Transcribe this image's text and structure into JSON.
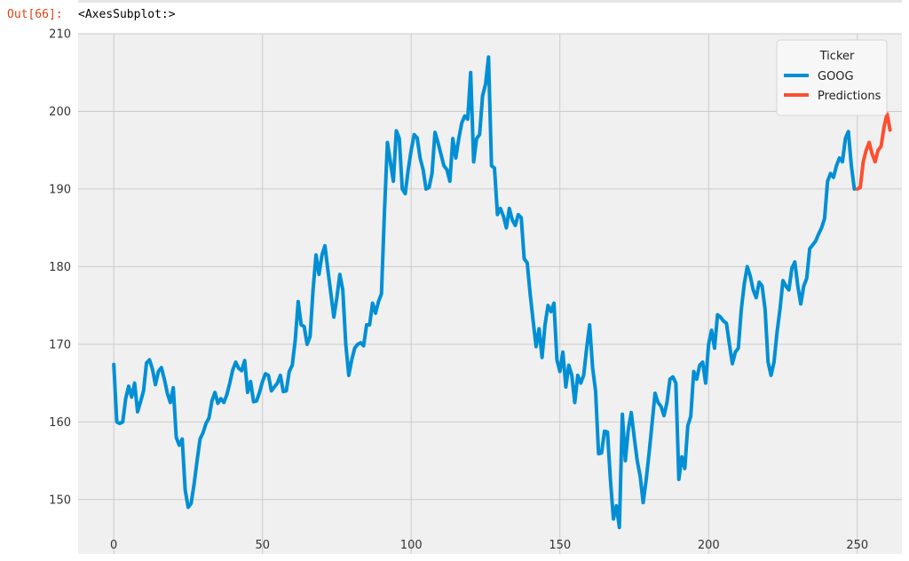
{
  "cell": {
    "prompt": "Out[66]:",
    "output_text": "<AxesSubplot:>"
  },
  "colors": {
    "plot_bg": "#f0f0f0",
    "grid": "#cbcbcb",
    "series": [
      "#008fd5",
      "#fc4f30"
    ],
    "prompt": "#d84315"
  },
  "chart_data": {
    "type": "line",
    "title": "",
    "xlabel": "",
    "ylabel": "",
    "xlim": [
      -12,
      265
    ],
    "ylim": [
      143,
      210
    ],
    "xticks": [
      0,
      50,
      100,
      150,
      200,
      250
    ],
    "yticks": [
      150,
      160,
      170,
      180,
      190,
      200,
      210
    ],
    "grid": true,
    "legend": {
      "title": "Ticker",
      "placement": "top-right",
      "entries": [
        "GOOG",
        "Predictions"
      ]
    },
    "series": [
      {
        "name": "GOOG",
        "x_start": 0,
        "values": [
          167.4,
          160.0,
          159.8,
          160.0,
          163.0,
          164.6,
          163.2,
          165.0,
          161.3,
          162.6,
          164.0,
          167.6,
          168.0,
          166.8,
          164.8,
          166.5,
          167.0,
          165.5,
          163.7,
          162.5,
          164.4,
          158.0,
          157.0,
          157.8,
          151.2,
          149.0,
          149.5,
          152.0,
          155.0,
          157.8,
          158.6,
          159.8,
          160.5,
          162.7,
          163.8,
          162.4,
          163.0,
          162.5,
          163.5,
          165.0,
          166.7,
          167.7,
          166.9,
          166.6,
          167.9,
          163.8,
          165.2,
          162.6,
          162.7,
          163.8,
          165.2,
          166.2,
          166.0,
          164.0,
          164.5,
          165.0,
          166.0,
          163.9,
          164.0,
          166.5,
          167.3,
          170.5,
          175.5,
          172.5,
          172.3,
          170.0,
          171.0,
          177.0,
          181.5,
          179.0,
          181.5,
          182.7,
          179.5,
          176.5,
          173.5,
          176.0,
          179.0,
          177.0,
          170.0,
          166.0,
          168.0,
          169.5,
          170.0,
          170.2,
          169.8,
          172.5,
          172.5,
          175.3,
          174.0,
          175.5,
          176.5,
          187.0,
          196.0,
          193.5,
          191.0,
          197.5,
          196.5,
          190.0,
          189.4,
          192.5,
          195.0,
          197.0,
          196.6,
          194.0,
          192.5,
          190.0,
          190.2,
          192.0,
          197.3,
          196.0,
          194.5,
          193.0,
          192.5,
          191.0,
          196.5,
          194.0,
          196.5,
          198.5,
          199.4,
          199.0,
          205.0,
          193.5,
          196.5,
          197.0,
          202.0,
          203.5,
          207.0,
          193.0,
          192.7,
          186.7,
          187.5,
          186.5,
          185.0,
          187.5,
          186.0,
          185.3,
          186.7,
          186.3,
          181.0,
          180.5,
          176.5,
          173.0,
          169.7,
          172.0,
          168.3,
          172.5,
          175.0,
          174.2,
          175.3,
          168.0,
          166.5,
          169.0,
          164.5,
          167.3,
          166.0,
          162.5,
          166.0,
          165.0,
          166.0,
          169.5,
          172.5,
          167.0,
          164.0,
          155.9,
          156.0,
          158.8,
          158.7,
          152.5,
          147.5,
          149.2,
          146.4,
          161.0,
          155.0,
          159.0,
          161.2,
          158.0,
          155.0,
          153.0,
          149.6,
          152.5,
          156.0,
          159.8,
          163.7,
          162.5,
          162.0,
          160.8,
          162.5,
          165.5,
          165.8,
          165.0,
          152.6,
          155.5,
          154.0,
          159.5,
          160.7,
          166.5,
          165.5,
          167.3,
          167.7,
          165.0,
          170.0,
          171.8,
          169.5,
          173.8,
          173.5,
          173.0,
          172.7,
          170.0,
          167.5,
          169.0,
          169.5,
          174.5,
          177.8,
          180.0,
          178.8,
          177.0,
          176.0,
          178.0,
          177.5,
          174.5,
          167.7,
          166.0,
          167.7,
          171.5,
          174.5,
          178.2,
          177.5,
          177.0,
          179.8,
          180.6,
          177.5,
          175.2,
          177.5,
          178.5,
          182.3,
          182.8,
          183.3,
          184.2,
          185.0,
          186.2,
          191.0,
          192.0,
          191.5,
          193.0,
          194.0,
          193.5,
          196.5,
          197.4,
          193.0,
          190.0
        ]
      },
      {
        "name": "Predictions",
        "x_start": 250,
        "values": [
          190.0,
          190.2,
          193.5,
          195.0,
          196.0,
          194.5,
          193.5,
          195.0,
          195.5,
          198.0,
          199.7,
          197.6
        ]
      }
    ]
  }
}
